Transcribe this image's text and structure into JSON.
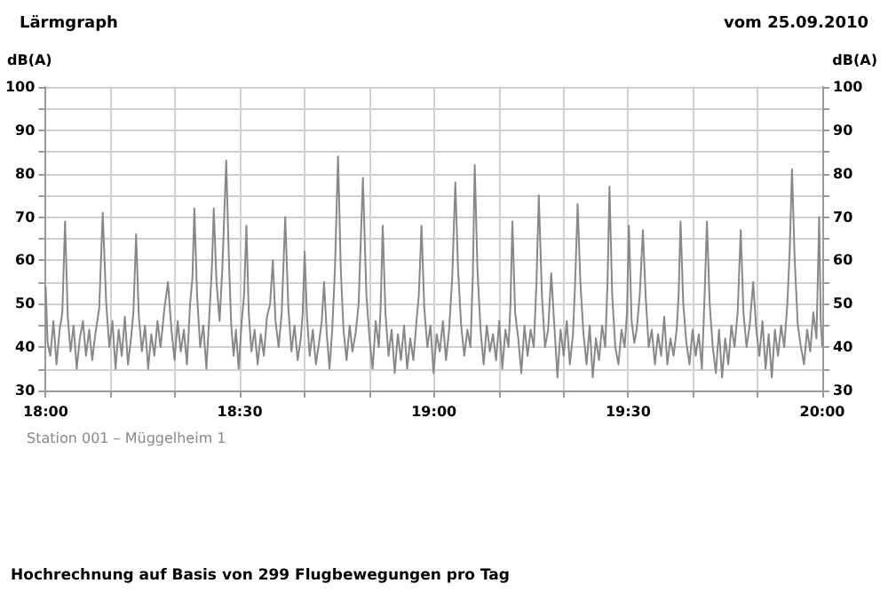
{
  "chart_data": {
    "type": "line",
    "title": "Lärmgraph",
    "subtitle": "vom 25.09.2010",
    "ylabel": "dB(A)",
    "y2label": "dB(A)",
    "annotations": [
      "Station 001 – Müggelheim 1",
      "Hochrechnung auf Basis von 299 Flugbewegungen pro Tag"
    ],
    "xlim": [
      18,
      20
    ],
    "xticks": [
      {
        "value": 18,
        "label": "18:00"
      },
      {
        "value": 18.1667,
        "label": null
      },
      {
        "value": 18.3333,
        "label": null
      },
      {
        "value": 18.5,
        "label": "18:30"
      },
      {
        "value": 18.6667,
        "label": null
      },
      {
        "value": 18.8333,
        "label": null
      },
      {
        "value": 19,
        "label": "19:00"
      },
      {
        "value": 19.1667,
        "label": null
      },
      {
        "value": 19.3333,
        "label": null
      },
      {
        "value": 19.5,
        "label": "19:30"
      },
      {
        "value": 19.6667,
        "label": null
      },
      {
        "value": 19.8333,
        "label": null
      },
      {
        "value": 20,
        "label": "20:00"
      }
    ],
    "ylim": [
      30,
      100
    ],
    "yticks": [
      30,
      {
        "value": 35,
        "label": null
      },
      40,
      {
        "value": 45,
        "label": null
      },
      50,
      {
        "value": 55,
        "label": null
      },
      60,
      {
        "value": 65,
        "label": null
      },
      70,
      {
        "value": 75,
        "label": null
      },
      80,
      {
        "value": 85,
        "label": null
      },
      90,
      {
        "value": 95,
        "label": null
      },
      100
    ],
    "y2lim": [
      30,
      100
    ],
    "y2ticks": [
      30,
      {
        "value": 35,
        "label": null
      },
      40,
      {
        "value": 45,
        "label": null
      },
      50,
      {
        "value": 55,
        "label": null
      },
      60,
      {
        "value": 65,
        "label": null
      },
      70,
      {
        "value": 75,
        "label": null
      },
      80,
      {
        "value": 85,
        "label": null
      },
      90,
      {
        "value": 95,
        "label": null
      },
      100
    ],
    "grid": true,
    "marker": "none",
    "line_style": "solid",
    "series": [
      {
        "color": "#888888",
        "x": [
          18.0,
          18.005,
          18.012,
          18.02,
          18.028,
          18.036,
          18.043,
          18.05,
          18.057,
          18.064,
          18.072,
          18.08,
          18.088,
          18.096,
          18.104,
          18.112,
          18.12,
          18.128,
          18.138,
          18.147,
          18.156,
          18.164,
          18.172,
          18.18,
          18.188,
          18.196,
          18.204,
          18.212,
          18.22,
          18.226,
          18.233,
          18.24,
          18.248,
          18.256,
          18.264,
          18.272,
          18.28,
          18.288,
          18.296,
          18.306,
          18.315,
          18.324,
          18.332,
          18.34,
          18.348,
          18.356,
          18.364,
          18.372,
          18.378,
          18.383,
          18.39,
          18.398,
          18.406,
          18.414,
          18.422,
          18.428,
          18.433,
          18.44,
          18.448,
          18.455,
          18.465,
          18.472,
          18.478,
          18.484,
          18.49,
          18.497,
          18.505,
          18.511,
          18.517,
          18.523,
          18.53,
          18.538,
          18.546,
          18.554,
          18.562,
          18.57,
          18.578,
          18.585,
          18.592,
          18.6,
          18.608,
          18.617,
          18.625,
          18.633,
          18.641,
          18.649,
          18.657,
          18.662,
          18.667,
          18.673,
          18.68,
          18.688,
          18.696,
          18.704,
          18.711,
          18.717,
          18.724,
          18.731,
          18.738,
          18.745,
          18.753,
          18.76,
          18.767,
          18.775,
          18.783,
          18.79,
          18.798,
          18.806,
          18.817,
          18.826,
          18.834,
          18.842,
          18.85,
          18.858,
          18.863,
          18.868,
          18.875,
          18.883,
          18.891,
          18.899,
          18.907,
          18.915,
          18.923,
          18.931,
          18.939,
          18.947,
          18.955,
          18.961,
          18.968,
          18.975,
          18.983,
          18.991,
          18.999,
          19.007,
          19.015,
          19.023,
          19.031,
          19.039,
          19.047,
          19.055,
          19.062,
          19.07,
          19.078,
          19.086,
          19.094,
          19.1,
          19.105,
          19.112,
          19.12,
          19.128,
          19.136,
          19.144,
          19.152,
          19.16,
          19.168,
          19.176,
          19.184,
          19.192,
          19.197,
          19.202,
          19.209,
          19.217,
          19.225,
          19.233,
          19.241,
          19.249,
          19.257,
          19.264,
          19.27,
          19.278,
          19.286,
          19.294,
          19.302,
          19.31,
          19.318,
          19.326,
          19.334,
          19.342,
          19.35,
          19.358,
          19.364,
          19.37,
          19.377,
          19.385,
          19.393,
          19.401,
          19.409,
          19.417,
          19.425,
          19.433,
          19.441,
          19.447,
          19.452,
          19.459,
          19.467,
          19.475,
          19.483,
          19.491,
          19.497,
          19.502,
          19.509,
          19.516,
          19.522,
          19.53,
          19.538,
          19.545,
          19.553,
          19.561,
          19.569,
          19.577,
          19.585,
          19.593,
          19.601,
          19.609,
          19.617,
          19.625,
          19.63,
          19.635,
          19.642,
          19.65,
          19.658,
          19.666,
          19.674,
          19.682,
          19.69,
          19.697,
          19.703,
          19.71,
          19.718,
          19.726,
          19.734,
          19.742,
          19.75,
          19.758,
          19.766,
          19.774,
          19.782,
          19.79,
          19.797,
          19.805,
          19.813,
          19.822,
          19.83,
          19.838,
          19.846,
          19.854,
          19.862,
          19.87,
          19.878,
          19.886,
          19.894,
          19.902,
          19.91,
          19.916,
          19.922,
          19.929,
          19.937,
          19.945,
          19.953,
          19.961,
          19.969,
          19.977,
          19.985,
          19.992,
          19.996,
          20.0
        ],
        "values": [
          54,
          41,
          38,
          46,
          36,
          44,
          48,
          69,
          47,
          39,
          45,
          35,
          42,
          46,
          38,
          44,
          37,
          43,
          49,
          71,
          50,
          40,
          46,
          35,
          44,
          38,
          47,
          36,
          42,
          48,
          66,
          47,
          39,
          45,
          35,
          43,
          38,
          46,
          40,
          49,
          55,
          44,
          37,
          46,
          39,
          44,
          36,
          50,
          56,
          72,
          52,
          40,
          45,
          35,
          48,
          58,
          72,
          55,
          46,
          58,
          83,
          60,
          45,
          38,
          44,
          35,
          46,
          52,
          68,
          48,
          39,
          44,
          36,
          43,
          38,
          47,
          50,
          60,
          46,
          40,
          48,
          70,
          49,
          39,
          45,
          37,
          42,
          48,
          62,
          47,
          38,
          44,
          36,
          41,
          46,
          55,
          43,
          35,
          44,
          58,
          84,
          58,
          44,
          37,
          45,
          39,
          43,
          50,
          79,
          52,
          42,
          35,
          46,
          40,
          50,
          68,
          48,
          38,
          44,
          34,
          43,
          37,
          45,
          35,
          42,
          37,
          46,
          52,
          68,
          49,
          40,
          45,
          34,
          43,
          39,
          46,
          37,
          44,
          56,
          78,
          58,
          45,
          38,
          44,
          40,
          56,
          82,
          58,
          44,
          36,
          45,
          39,
          43,
          37,
          46,
          35,
          44,
          40,
          50,
          69,
          48,
          42,
          34,
          45,
          38,
          44,
          40,
          55,
          75,
          52,
          40,
          44,
          57,
          45,
          33,
          44,
          38,
          46,
          36,
          43,
          56,
          73,
          55,
          43,
          36,
          45,
          33,
          42,
          37,
          45,
          40,
          55,
          77,
          52,
          40,
          36,
          44,
          40,
          48,
          68,
          46,
          41,
          44,
          52,
          67,
          52,
          40,
          44,
          36,
          43,
          38,
          47,
          36,
          42,
          38,
          44,
          52,
          69,
          50,
          41,
          36,
          44,
          38,
          43,
          35,
          52,
          69,
          50,
          40,
          34,
          44,
          33,
          42,
          36,
          45,
          40,
          48,
          67,
          48,
          40,
          45,
          55,
          44,
          38,
          46,
          35,
          43,
          33,
          44,
          38,
          45,
          40,
          50,
          62,
          81,
          60,
          45,
          40,
          36,
          44,
          39,
          48,
          42,
          70,
          46,
          40
        ]
      }
    ]
  }
}
